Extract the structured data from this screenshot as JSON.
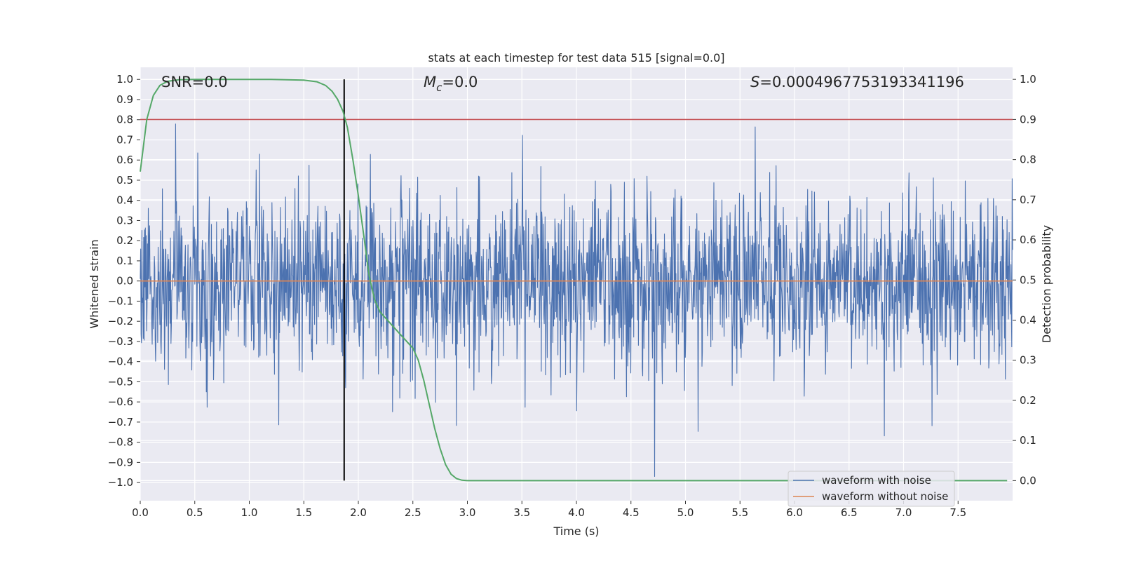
{
  "chart_data": {
    "type": "line",
    "title": "stats at each timestep for test data 515 [signal=0.0]",
    "xlabel": "Time (s)",
    "ylabel_left": "Whitened strain",
    "ylabel_right": "Detection probability",
    "xlim": [
      0.0,
      8.0
    ],
    "ylim_left": [
      -1.09,
      1.06
    ],
    "ylim_right": [
      -0.05,
      1.03
    ],
    "x_ticks": [
      "0.0",
      "0.5",
      "1.0",
      "1.5",
      "2.0",
      "2.5",
      "3.0",
      "3.5",
      "4.0",
      "4.5",
      "5.0",
      "5.5",
      "6.0",
      "6.5",
      "7.0",
      "7.5"
    ],
    "y_ticks_left": [
      "1.0",
      "0.9",
      "0.8",
      "0.7",
      "0.6",
      "0.5",
      "0.4",
      "0.3",
      "0.2",
      "0.1",
      "0.0",
      "−0.1",
      "−0.2",
      "−0.3",
      "−0.4",
      "−0.5",
      "−0.6",
      "−0.7",
      "−0.8",
      "−0.9",
      "−1.0"
    ],
    "y_ticks_right": [
      "1.0",
      "0.9",
      "0.8",
      "0.7",
      "0.6",
      "0.5",
      "0.4",
      "0.3",
      "0.2",
      "0.1",
      "0.0"
    ],
    "annotations": {
      "snr": "SNR=0.0",
      "mc_symbol": "M",
      "mc_sub": "c",
      "mc_value": "=0.0",
      "s_symbol": "S",
      "s_value": "=0.0004967753193341196"
    },
    "threshold": {
      "axis": "right",
      "value": 0.9,
      "color": "#c44e52"
    },
    "marker_time": 1.87,
    "series": [
      {
        "name": "waveform with noise",
        "color": "#4c72b0",
        "axis": "left",
        "kind": "noise",
        "typical_amplitude": 0.22,
        "peak_amplitude": 0.97,
        "samples": 2048
      },
      {
        "name": "waveform without noise",
        "color": "#dd8452",
        "axis": "left",
        "x": [
          0,
          8
        ],
        "y": [
          0.0,
          0.0
        ]
      },
      {
        "name": "detection probability",
        "color": "#55a868",
        "axis": "right",
        "x": [
          0.0,
          0.06,
          0.12,
          0.18,
          0.25,
          0.35,
          0.5,
          0.8,
          1.2,
          1.5,
          1.62,
          1.7,
          1.76,
          1.81,
          1.86,
          1.9,
          1.95,
          2.0,
          2.05,
          2.1,
          2.15,
          2.2,
          2.3,
          2.4,
          2.5,
          2.55,
          2.6,
          2.65,
          2.7,
          2.75,
          2.8,
          2.85,
          2.9,
          2.95,
          3.0,
          3.1,
          3.5,
          4.0,
          5.0,
          6.0,
          7.0,
          7.95
        ],
        "y": [
          0.77,
          0.9,
          0.96,
          0.985,
          0.995,
          0.999,
          1.0,
          1.0,
          1.0,
          0.998,
          0.994,
          0.985,
          0.97,
          0.95,
          0.92,
          0.88,
          0.8,
          0.71,
          0.61,
          0.51,
          0.45,
          0.42,
          0.39,
          0.36,
          0.33,
          0.3,
          0.25,
          0.19,
          0.13,
          0.08,
          0.04,
          0.016,
          0.005,
          0.001,
          0.0,
          0.0,
          0.0,
          0.0,
          0.0,
          0.0,
          0.0,
          0.0
        ]
      }
    ],
    "legend": {
      "position": "lower-right",
      "entries": [
        "waveform with noise",
        "waveform without noise"
      ]
    },
    "grid": true
  }
}
